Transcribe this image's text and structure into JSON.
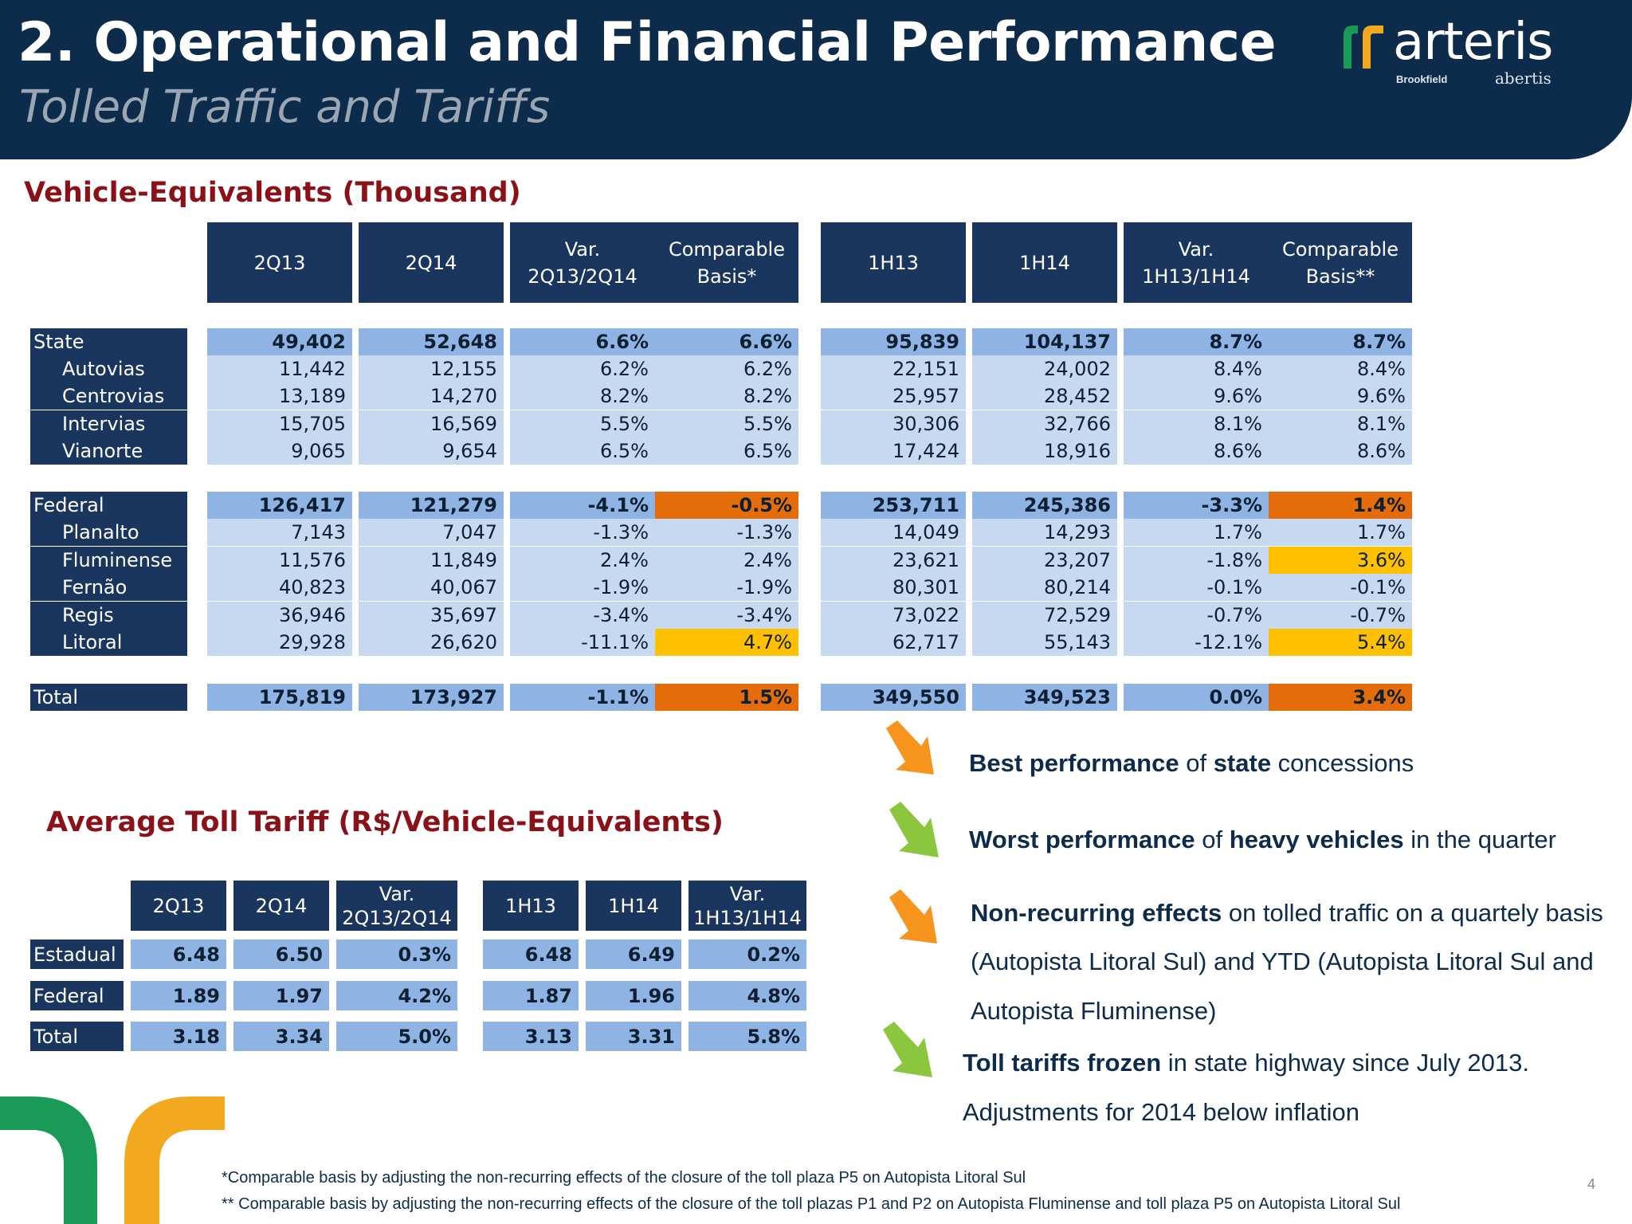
{
  "header": {
    "title": "2. Operational and Financial Performance",
    "subtitle": "Tolled Traffic and Tariffs",
    "logo_word": "arteris",
    "logo_sub_left": "Brookfield",
    "logo_sub_right": "abertis"
  },
  "traffic": {
    "title": "Vehicle-Equivalents (Thousand)",
    "headers": {
      "c1": "2Q13",
      "c2": "2Q14",
      "c3a": "Var.",
      "c3b": "2Q13/2Q14",
      "c4a": "Comparable",
      "c4b": "Basis*",
      "c5": "1H13",
      "c6": "1H14",
      "c7a": "Var.",
      "c7b": "1H13/1H14",
      "c8a": "Comparable",
      "c8b": "Basis**"
    },
    "rows": [
      {
        "label": "State",
        "v": [
          "49,402",
          "52,648",
          "6.6%",
          "6.6%",
          "95,839",
          "104,137",
          "8.7%",
          "8.7%"
        ]
      },
      {
        "label": "Autovias",
        "v": [
          "11,442",
          "12,155",
          "6.2%",
          "6.2%",
          "22,151",
          "24,002",
          "8.4%",
          "8.4%"
        ]
      },
      {
        "label": "Centrovias",
        "v": [
          "13,189",
          "14,270",
          "8.2%",
          "8.2%",
          "25,957",
          "28,452",
          "9.6%",
          "9.6%"
        ]
      },
      {
        "label": "Intervias",
        "v": [
          "15,705",
          "16,569",
          "5.5%",
          "5.5%",
          "30,306",
          "32,766",
          "8.1%",
          "8.1%"
        ]
      },
      {
        "label": "Vianorte",
        "v": [
          "9,065",
          "9,654",
          "6.5%",
          "6.5%",
          "17,424",
          "18,916",
          "8.6%",
          "8.6%"
        ]
      },
      {
        "label": "Federal",
        "v": [
          "126,417",
          "121,279",
          "-4.1%",
          "-0.5%",
          "253,711",
          "245,386",
          "-3.3%",
          "1.4%"
        ]
      },
      {
        "label": "Planalto",
        "v": [
          "7,143",
          "7,047",
          "-1.3%",
          "-1.3%",
          "14,049",
          "14,293",
          "1.7%",
          "1.7%"
        ]
      },
      {
        "label": "Fluminense",
        "v": [
          "11,576",
          "11,849",
          "2.4%",
          "2.4%",
          "23,621",
          "23,207",
          "-1.8%",
          "3.6%"
        ]
      },
      {
        "label": "Fernão",
        "v": [
          "40,823",
          "40,067",
          "-1.9%",
          "-1.9%",
          "80,301",
          "80,214",
          "-0.1%",
          "-0.1%"
        ]
      },
      {
        "label": "Regis",
        "v": [
          "36,946",
          "35,697",
          "-3.4%",
          "-3.4%",
          "73,022",
          "72,529",
          "-0.7%",
          "-0.7%"
        ]
      },
      {
        "label": "Litoral",
        "v": [
          "29,928",
          "26,620",
          "-11.1%",
          "4.7%",
          "62,717",
          "55,143",
          "-12.1%",
          "5.4%"
        ]
      },
      {
        "label": "Total",
        "v": [
          "175,819",
          "173,927",
          "-1.1%",
          "1.5%",
          "349,550",
          "349,523",
          "0.0%",
          "3.4%"
        ]
      }
    ]
  },
  "tariff": {
    "title": "Average Toll Tariff (R$/Vehicle-Equivalents)",
    "headers": {
      "c1": "2Q13",
      "c2": "2Q14",
      "c3a": "Var.",
      "c3b": "2Q13/2Q14",
      "c4": "1H13",
      "c5": "1H14",
      "c6a": "Var.",
      "c6b": "1H13/1H14"
    },
    "rows": [
      {
        "label": "Estadual",
        "v": [
          "6.48",
          "6.50",
          "0.3%",
          "6.48",
          "6.49",
          "0.2%"
        ]
      },
      {
        "label": "Federal",
        "v": [
          "1.89",
          "1.97",
          "4.2%",
          "1.87",
          "1.96",
          "4.8%"
        ]
      },
      {
        "label": "Total",
        "v": [
          "3.18",
          "3.34",
          "5.0%",
          "3.13",
          "3.31",
          "5.8%"
        ]
      }
    ]
  },
  "bullets": {
    "b1": {
      "p1": "Best performance",
      "p2": " of ",
      "p3": "state",
      "p4": " concessions"
    },
    "b2": {
      "p1": "Worst performance",
      "p2": " of ",
      "p3": "heavy vehicles",
      "p4": " in the quarter"
    },
    "b3": {
      "p1": "Non-recurring effects",
      "p2": " on tolled traffic on a quartely basis",
      "l2": "(Autopista  Litoral Sul) and YTD (Autopista Litoral Sul and",
      "l3": "Autopista Fluminense)"
    },
    "b4": {
      "p1": "Toll tariffs frozen",
      "p2": " in state highway since July 2013.",
      "l2": "Adjustments for 2014 below inflation"
    }
  },
  "colors": {
    "navy": "#0d2b4a",
    "header_cell": "#1a365f",
    "dark_cell": "#8fb4e3",
    "light_cell": "#c6d9f1",
    "orange": "#e46c0a",
    "yellow": "#ffc000",
    "section_title": "#8b1118"
  },
  "footnotes": {
    "f1": "*Comparable basis by adjusting the non-recurring effects of the closure of the toll  plaza P5 on Autopista Litoral Sul",
    "f2": "** Comparable basis by adjusting the non-recurring effects of the closure of the toll plazas P1 and P2 on Autopista Fluminense and toll plaza P5 on Autopista Litoral Sul"
  },
  "page_number": "4"
}
